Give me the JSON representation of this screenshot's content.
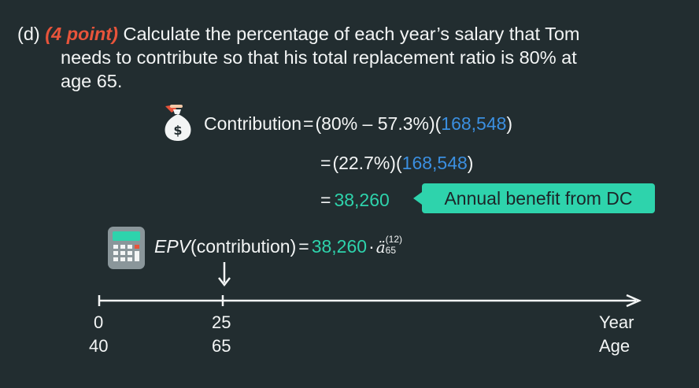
{
  "question": {
    "prefix": "(d)",
    "points": "(4 point)",
    "line1": "Calculate the percentage of each year’s salary that Tom",
    "line2": "needs to contribute so that his total replacement ratio is 80% at",
    "line3": "age 65."
  },
  "equation": {
    "row1": {
      "label": "Contribution",
      "eq": "=",
      "factor": "(80% – 57.3%)",
      "value": "168,548"
    },
    "row2": {
      "eq": "=",
      "factor": "(22.7%)",
      "value": "168,548"
    },
    "row3": {
      "eq": "=",
      "value": "38,260"
    },
    "callout": "Annual benefit from DC",
    "epv": {
      "label": "EPV",
      "arg": "(contribution)",
      "eq": "=",
      "value": "38,260",
      "dot": "·",
      "annuity": "ä",
      "sup": "(12)",
      "sub": "65"
    }
  },
  "timeline": {
    "start_top": "0",
    "start_bottom": "40",
    "mid_top": "25",
    "mid_bottom": "65",
    "end_top": "Year",
    "end_bottom": "Age"
  },
  "icons": {
    "money_bag": "money-bag-icon",
    "calculator": "calculator-icon"
  },
  "colors": {
    "background": "#222d30",
    "accent_red": "#e8543b",
    "accent_blue": "#3b8fe0",
    "accent_teal": "#2ed3ac",
    "text": "#f3f5f5"
  }
}
